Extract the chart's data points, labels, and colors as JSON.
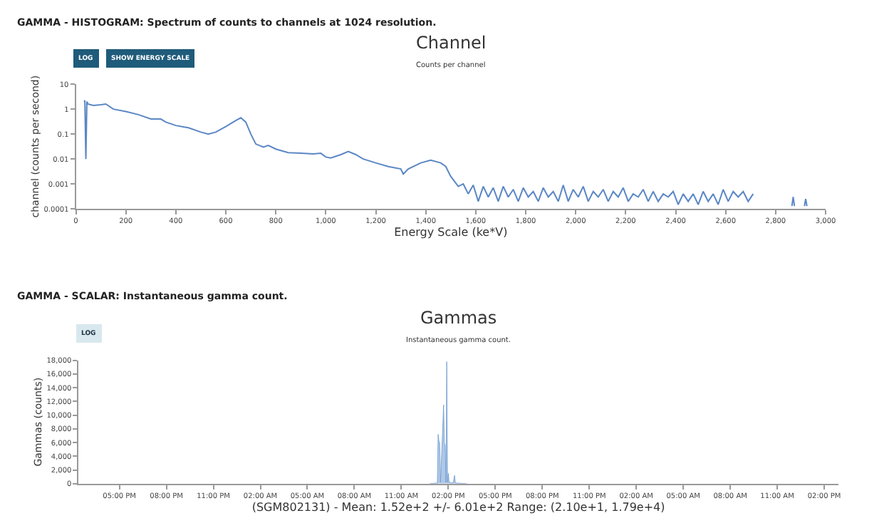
{
  "chart_data": [
    {
      "type": "line",
      "title": "Channel",
      "subtitle": "Counts per channel",
      "xlabel": "Energy Scale (ke*V)",
      "ylabel": "channel (counts per second)",
      "annotations": [
        "GAMMA - HISTOGRAM: Spectrum of counts to channels at 1024 resolution.",
        "LOG",
        "SHOW ENERGY SCALE"
      ],
      "log": "y",
      "marker": "none",
      "line_style": "solid",
      "xlim": [
        0,
        3000
      ],
      "ylim": [
        0.0001,
        10
      ],
      "xticks": [
        0,
        200,
        400,
        600,
        800,
        {
          "value": 1000,
          "label": "1,000"
        },
        {
          "value": 1200,
          "label": "1,200"
        },
        {
          "value": 1400,
          "label": "1,400"
        },
        {
          "value": 1600,
          "label": "1,600"
        },
        {
          "value": 1800,
          "label": "1,800"
        },
        {
          "value": 2000,
          "label": "2,000"
        },
        {
          "value": 2200,
          "label": "2,200"
        },
        {
          "value": 2400,
          "label": "2,400"
        },
        {
          "value": 2600,
          "label": "2,600"
        },
        {
          "value": 2800,
          "label": "2,800"
        },
        {
          "value": 3000,
          "label": "3,000"
        }
      ],
      "yticks": [
        0.0001,
        0.001,
        0.01,
        0.1,
        1,
        10
      ],
      "series": [
        {
          "color": "#5b87c5",
          "x": [
            33,
            36,
            40,
            44,
            48,
            70,
            100,
            120,
            150,
            200,
            250,
            300,
            340,
            360,
            400,
            450,
            500,
            530,
            560,
            600,
            640,
            660,
            680,
            700,
            720,
            750,
            770,
            800,
            850,
            900,
            950,
            980,
            1000,
            1020,
            1060,
            1090,
            1120,
            1150,
            1200,
            1250,
            1300,
            1310,
            1330,
            1380,
            1420,
            1460,
            1480,
            1500,
            1530,
            1550,
            1570,
            1590,
            1610,
            1630,
            1650,
            1670,
            1690,
            1710,
            1730,
            1750,
            1770,
            1790,
            1810,
            1830,
            1850,
            1870,
            1890,
            1910,
            1930,
            1950,
            1970,
            1990,
            2010,
            2030,
            2050,
            2070,
            2090,
            2110,
            2130,
            2150,
            2170,
            2190,
            2210,
            2230,
            2250,
            2270,
            2290,
            2310,
            2330,
            2350,
            2370,
            2390,
            2410,
            2430,
            2450,
            2470,
            2490,
            2510,
            2530,
            2550,
            2570,
            2590,
            2610,
            2630,
            2650,
            2670,
            2690,
            2710,
            2730,
            2865,
            2870,
            2875,
            2900,
            2915,
            2920,
            2925
          ],
          "values": [
            2,
            2.2,
            0.01,
            2,
            1.6,
            1.4,
            1.5,
            1.6,
            1.0,
            0.8,
            0.6,
            0.4,
            0.4,
            0.3,
            0.22,
            0.18,
            0.12,
            0.1,
            0.12,
            0.2,
            0.35,
            0.45,
            0.3,
            0.1,
            0.04,
            0.03,
            0.035,
            0.025,
            0.018,
            0.017,
            0.016,
            0.017,
            0.012,
            0.011,
            0.015,
            0.02,
            0.015,
            0.01,
            0.007,
            0.005,
            0.004,
            0.0025,
            0.004,
            0.007,
            0.009,
            0.007,
            0.005,
            0.002,
            0.0008,
            0.001,
            0.0004,
            0.0009,
            0.0002,
            0.0008,
            0.0003,
            0.0007,
            0.0002,
            0.0008,
            0.0003,
            0.0006,
            0.0002,
            0.0007,
            0.0003,
            0.0005,
            0.0002,
            0.0007,
            0.0003,
            0.0005,
            0.0002,
            0.0009,
            0.0002,
            0.0006,
            0.0003,
            0.0008,
            0.0002,
            0.0005,
            0.0003,
            0.0006,
            0.0002,
            0.0005,
            0.0003,
            0.0007,
            0.0002,
            0.0004,
            0.0003,
            0.0006,
            0.0002,
            0.0005,
            0.0002,
            0.0004,
            0.0003,
            0.0005,
            0.00015,
            0.0004,
            0.0002,
            0.0004,
            0.00015,
            0.0005,
            0.0002,
            0.0004,
            0.00015,
            0.0006,
            0.0002,
            0.0005,
            0.0003,
            0.0005,
            0.0002,
            0.0004,
            null,
            0.00013,
            0.0003,
            0.00013,
            null,
            0.00013,
            0.00025,
            0.00013
          ]
        }
      ]
    },
    {
      "type": "area",
      "title": "Gammas",
      "subtitle": "Instantaneous gamma count.",
      "xlabel": "(SGM802131) - Mean: 1.52e+2 +/- 6.01e+2 Range: (2.10e+1, 1.79e+4)",
      "ylabel": "Gammas (counts)",
      "annotations": [
        "GAMMA - SCALAR: Instantaneous gamma count.",
        "LOG"
      ],
      "marker": "none",
      "line_style": "solid",
      "xlim": [
        "--01-01T14:24",
        "--01-03T14:54"
      ],
      "ylim": [
        0,
        18000
      ],
      "xticks": [
        {
          "value": "--01-01T17:00",
          "label": "05:00 PM"
        },
        {
          "value": "--01-01T20:00",
          "label": "08:00 PM"
        },
        {
          "value": "--01-01T23:00",
          "label": "11:00 PM"
        },
        {
          "value": "--01-02T02:00",
          "label": "02:00 AM"
        },
        {
          "value": "--01-02T05:00",
          "label": "05:00 AM"
        },
        {
          "value": "--01-02T08:00",
          "label": "08:00 AM"
        },
        {
          "value": "--01-02T11:00",
          "label": "11:00 AM"
        },
        {
          "value": "--01-02T14:00",
          "label": "02:00 PM"
        },
        {
          "value": "--01-02T17:00",
          "label": "05:00 PM"
        },
        {
          "value": "--01-02T20:00",
          "label": "08:00 PM"
        },
        {
          "value": "--01-02T23:00",
          "label": "11:00 PM"
        },
        {
          "value": "--01-03T02:00",
          "label": "02:00 AM"
        },
        {
          "value": "--01-03T05:00",
          "label": "05:00 AM"
        },
        {
          "value": "--01-03T08:00",
          "label": "08:00 AM"
        },
        {
          "value": "--01-03T11:00",
          "label": "11:00 AM"
        },
        {
          "value": "--01-03T14:00",
          "label": "02:00 PM"
        }
      ],
      "yticks": [
        0,
        {
          "value": 2000,
          "label": "2,000"
        },
        {
          "value": 4000,
          "label": "4,000"
        },
        {
          "value": 6000,
          "label": "6,000"
        },
        {
          "value": 8000,
          "label": "8,000"
        },
        {
          "value": 10000,
          "label": "10,000"
        },
        {
          "value": 12000,
          "label": "12,000"
        },
        {
          "value": 14000,
          "label": "14,000"
        },
        {
          "value": 16000,
          "label": "16,000"
        },
        {
          "value": 18000,
          "label": "18,000"
        }
      ],
      "series": [
        {
          "color": "#6d9bd1",
          "x": [
            "--01-02T12:48",
            "--01-02T13:18",
            "--01-02T13:21",
            "--01-02T13:24",
            "--01-02T13:27",
            "--01-02T13:30",
            "--01-02T13:36",
            "--01-02T13:42",
            "--01-02T13:45",
            "--01-02T13:48",
            "--01-02T13:51",
            "--01-02T13:54",
            "--01-02T13:57",
            "--01-02T14:00",
            "--01-02T14:03",
            "--01-02T14:18",
            "--01-02T14:24",
            "--01-02T14:27",
            "--01-02T15:12"
          ],
          "values": [
            0,
            100,
            7200,
            6200,
            6000,
            200,
            5700,
            11500,
            5800,
            5700,
            200,
            17800,
            200,
            1500,
            200,
            100,
            1200,
            100,
            0
          ]
        }
      ]
    }
  ]
}
